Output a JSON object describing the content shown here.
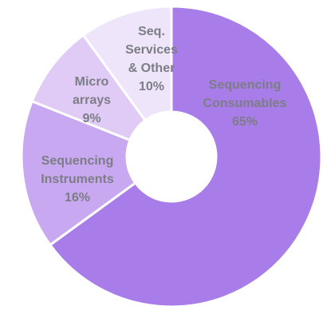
{
  "chart_data": {
    "type": "donut",
    "categories": [
      "Sequencing\nConsumables",
      "Sequencing\nInstruments",
      "Micro\narrays",
      "Seq.\nServices\n& Other"
    ],
    "values": [
      65,
      16,
      9,
      10
    ],
    "value_labels": [
      "65%",
      "16%",
      "9%",
      "10%"
    ],
    "colors": [
      "#a87ce9",
      "#c8a8f1",
      "#dfcbf6",
      "#efe5fb"
    ]
  }
}
